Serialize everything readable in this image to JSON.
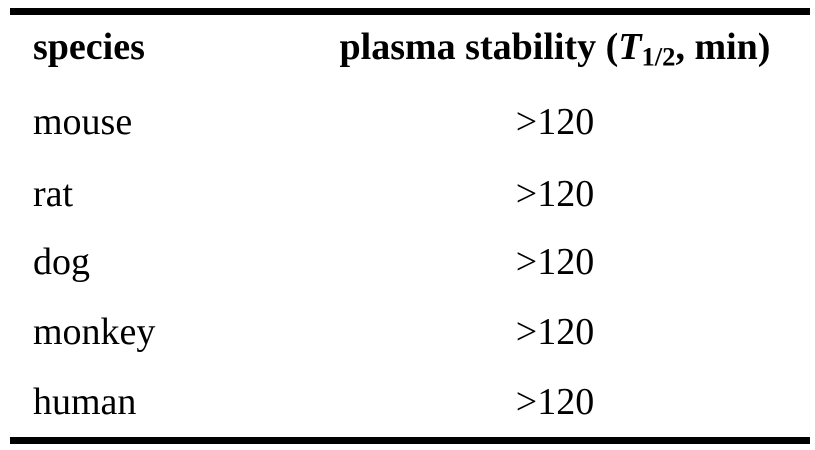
{
  "figure": {
    "background_color": "#ffffff",
    "rule_color": "#000000",
    "text_color": "#000000"
  },
  "table": {
    "header": {
      "col1": "species",
      "col2_prefix": "plasma stability (",
      "col2_symbol": "T",
      "col2_subscript": "1/2",
      "col2_suffix": ", min)"
    },
    "rows": [
      {
        "species": "mouse",
        "plasma_stability": ">120"
      },
      {
        "species": "rat",
        "plasma_stability": ">120"
      },
      {
        "species": "dog",
        "plasma_stability": ">120"
      },
      {
        "species": "monkey",
        "plasma_stability": ">120"
      },
      {
        "species": "human",
        "plasma_stability": ">120"
      }
    ]
  }
}
